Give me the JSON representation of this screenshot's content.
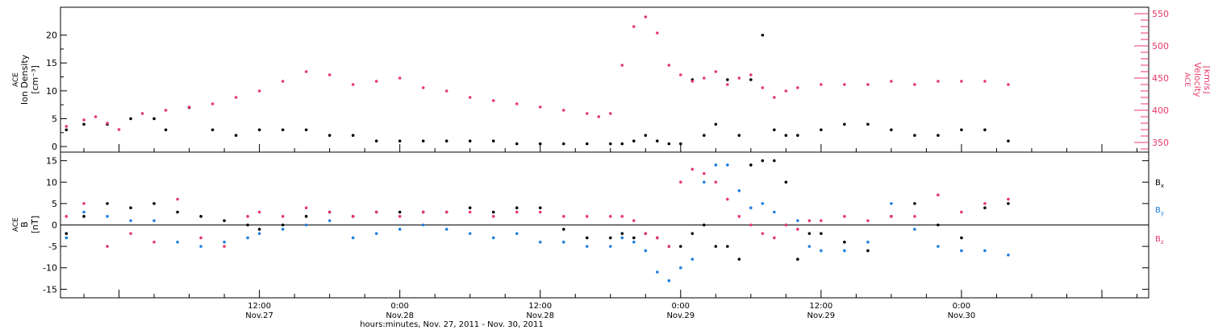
{
  "xaxis_caption": "hours:minutes, Nov. 27, 2011 - Nov. 30, 2011",
  "x_domain_hours": [
    -17.0,
    76.0
  ],
  "x_ticks": [
    {
      "hour": 0,
      "time": "12:00",
      "day": "Nov.27"
    },
    {
      "hour": 12,
      "time": "0:00",
      "day": "Nov.28"
    },
    {
      "hour": 24,
      "time": "12:00",
      "day": "Nov.28"
    },
    {
      "hour": 36,
      "time": "0:00",
      "day": "Nov.29"
    },
    {
      "hour": 48,
      "time": "12:00",
      "day": "Nov.29"
    },
    {
      "hour": 60,
      "time": "0:00",
      "day": "Nov.30"
    }
  ],
  "colors": {
    "black": "#000000",
    "blue": "#1f7fe0",
    "red": "#e8386a"
  },
  "chart_data": [
    {
      "type": "scatter",
      "panel": "top",
      "ylabel": [
        "ACE",
        "Ion Density",
        "[cm⁻³]"
      ],
      "ylim": [
        -1,
        25
      ],
      "yticks": [
        0,
        5,
        10,
        15,
        20
      ],
      "ylabel_right": [
        "ACE",
        "Velocity",
        "[km/s]"
      ],
      "ylim_right": [
        335,
        560
      ],
      "yticks_right": [
        350,
        400,
        450,
        500,
        550
      ],
      "series": [
        {
          "key": "density",
          "axis": "left",
          "color": "#000000",
          "x": [
            -16.5,
            -15,
            -13,
            -11,
            -9,
            -8,
            -6,
            -4,
            -2,
            0,
            2,
            4,
            6,
            8,
            10,
            12,
            14,
            16,
            18,
            20,
            22,
            24,
            26,
            28,
            30,
            31,
            32,
            33,
            34,
            35,
            36,
            37,
            38,
            39,
            40,
            41,
            42,
            43,
            44,
            45,
            46,
            48,
            50,
            52,
            54,
            56,
            58,
            60,
            62,
            64
          ],
          "y": [
            3,
            4,
            4,
            5,
            5,
            3,
            7,
            3,
            2,
            3,
            3,
            3,
            2,
            2,
            1,
            1,
            1,
            1,
            1,
            1,
            0.5,
            0.5,
            0.5,
            0.5,
            0.5,
            0.5,
            1,
            2,
            1,
            0.5,
            0.5,
            12,
            2,
            4,
            12,
            2,
            12,
            20,
            3,
            2,
            2,
            3,
            4,
            4,
            3,
            2,
            2,
            3,
            3,
            1
          ]
        },
        {
          "key": "velocity",
          "axis": "right",
          "color": "#e8386a",
          "x": [
            -16.5,
            -15,
            -14,
            -13,
            -12,
            -10,
            -8,
            -6,
            -4,
            -2,
            0,
            2,
            4,
            6,
            8,
            10,
            12,
            14,
            16,
            18,
            20,
            22,
            24,
            26,
            28,
            29,
            30,
            31,
            32,
            33,
            34,
            35,
            36,
            37,
            38,
            39,
            40,
            41,
            42,
            43,
            44,
            45,
            46,
            48,
            50,
            52,
            54,
            56,
            58,
            60,
            62,
            64
          ],
          "y": [
            375,
            385,
            390,
            380,
            370,
            395,
            400,
            405,
            410,
            420,
            430,
            445,
            460,
            455,
            440,
            445,
            450,
            435,
            430,
            420,
            415,
            410,
            405,
            400,
            395,
            390,
            395,
            470,
            530,
            545,
            520,
            470,
            455,
            445,
            450,
            460,
            440,
            450,
            455,
            435,
            420,
            430,
            435,
            440,
            440,
            440,
            445,
            440,
            445,
            445,
            445,
            440
          ]
        }
      ]
    },
    {
      "type": "scatter",
      "panel": "bottom",
      "ylabel": [
        "ACE",
        "B",
        "[nT]"
      ],
      "ylim": [
        -17,
        17
      ],
      "yticks": [
        -15,
        -10,
        -5,
        0,
        5,
        10,
        15
      ],
      "zero_line": true,
      "series": [
        {
          "key": "bx",
          "name_base": "B",
          "name_sub": "x",
          "color": "#000000",
          "x": [
            -16.5,
            -15,
            -13,
            -11,
            -9,
            -7,
            -5,
            -3,
            -1,
            0,
            2,
            4,
            6,
            8,
            10,
            12,
            14,
            16,
            18,
            20,
            22,
            24,
            26,
            28,
            30,
            31,
            32,
            33,
            34,
            35,
            36,
            37,
            38,
            39,
            40,
            41,
            42,
            43,
            44,
            45,
            46,
            47,
            48,
            50,
            52,
            54,
            56,
            58,
            60,
            62,
            64
          ],
          "y": [
            -2,
            2,
            5,
            4,
            5,
            3,
            2,
            1,
            0,
            -1,
            0,
            2,
            3,
            2,
            3,
            3,
            3,
            3,
            4,
            3,
            4,
            4,
            -1,
            -3,
            -3,
            -2,
            -3,
            -2,
            -3,
            -5,
            -5,
            -2,
            0,
            -5,
            -5,
            -8,
            14,
            15,
            15,
            10,
            -8,
            -2,
            -2,
            -4,
            -6,
            2,
            5,
            0,
            -3,
            4,
            5
          ]
        },
        {
          "key": "by",
          "name_base": "B",
          "name_sub": "y",
          "color": "#1f7fe0",
          "x": [
            -16.5,
            -15,
            -13,
            -11,
            -9,
            -7,
            -5,
            -3,
            -1,
            0,
            2,
            4,
            6,
            8,
            10,
            12,
            14,
            16,
            18,
            20,
            22,
            24,
            26,
            28,
            30,
            31,
            32,
            33,
            34,
            35,
            36,
            37,
            38,
            39,
            40,
            41,
            42,
            43,
            44,
            45,
            46,
            47,
            48,
            50,
            52,
            54,
            56,
            58,
            60,
            62,
            64
          ],
          "y": [
            -3,
            3,
            2,
            1,
            1,
            -4,
            -5,
            -4,
            -3,
            -2,
            -1,
            0,
            1,
            -3,
            -2,
            -1,
            0,
            -1,
            -2,
            -3,
            -2,
            -4,
            -4,
            -5,
            -5,
            -3,
            -4,
            -6,
            -11,
            -13,
            -10,
            -8,
            10,
            14,
            14,
            8,
            4,
            5,
            3,
            0,
            1,
            -5,
            -6,
            -6,
            -4,
            5,
            -1,
            -5,
            -6,
            -6,
            -7
          ]
        },
        {
          "key": "bz",
          "name_base": "B",
          "name_sub": "z",
          "color": "#e8386a",
          "x": [
            -16.5,
            -15,
            -13,
            -11,
            -9,
            -7,
            -5,
            -3,
            -1,
            0,
            2,
            4,
            6,
            8,
            10,
            12,
            14,
            16,
            18,
            20,
            22,
            24,
            26,
            28,
            30,
            31,
            32,
            33,
            34,
            35,
            36,
            37,
            38,
            39,
            40,
            41,
            42,
            43,
            44,
            45,
            46,
            47,
            48,
            50,
            52,
            54,
            56,
            58,
            60,
            62,
            64
          ],
          "y": [
            2,
            5,
            -5,
            -2,
            -4,
            6,
            -3,
            -5,
            2,
            3,
            2,
            4,
            3,
            2,
            3,
            2,
            3,
            3,
            3,
            2,
            3,
            3,
            2,
            2,
            2,
            2,
            1,
            -2,
            -3,
            -5,
            10,
            13,
            12,
            10,
            6,
            2,
            0,
            -2,
            -3,
            0,
            -1,
            1,
            1,
            2,
            1,
            2,
            2,
            7,
            3,
            5,
            6
          ]
        }
      ]
    }
  ]
}
